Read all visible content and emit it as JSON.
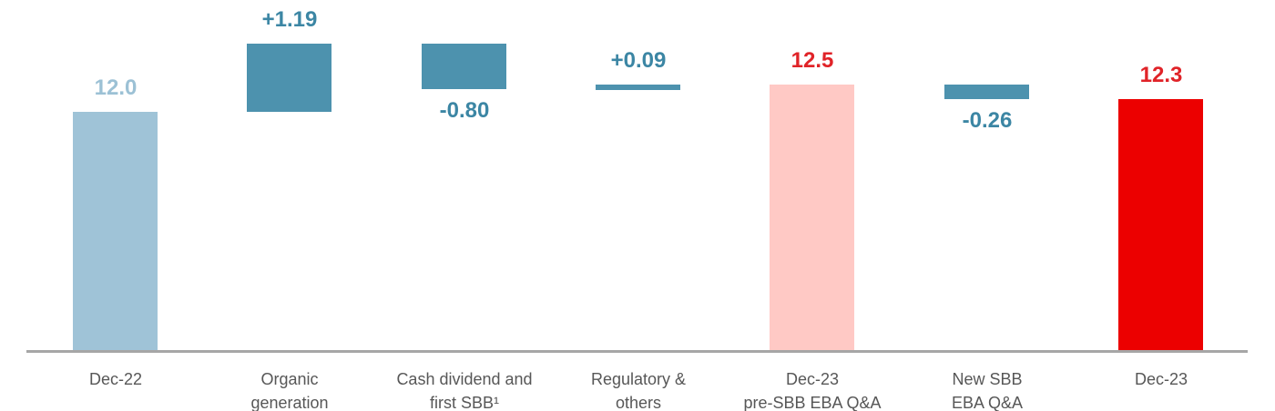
{
  "chart_data": {
    "type": "bar",
    "subtype": "waterfall",
    "title": "",
    "xlabel": "",
    "ylabel": "",
    "grid": false,
    "legend": null,
    "axis": {
      "baseline_color": "#a6a6a6"
    },
    "categories": [
      "Dec-22",
      "Organic\ngeneration",
      "Cash dividend and\nfirst SBB¹",
      "Regulatory &\nothers",
      "Dec-23\npre-SBB EBA Q&A",
      "New SBB\nEBA Q&A",
      "Dec-23"
    ],
    "bars": [
      {
        "category": "Dec-22",
        "label": "12.0",
        "value": 12.0,
        "kind": "total",
        "color": "#9fc3d7",
        "label_color": "#9cc1d5",
        "label_position": "above"
      },
      {
        "category": "Organic\ngeneration",
        "label": "+1.19",
        "value": 1.19,
        "kind": "delta",
        "color": "#4d92ae",
        "label_color": "#3c86a4",
        "label_position": "above"
      },
      {
        "category": "Cash dividend and\nfirst SBB¹",
        "label": "-0.80",
        "value": -0.8,
        "kind": "delta",
        "color": "#4d92ae",
        "label_color": "#3c86a4",
        "label_position": "below"
      },
      {
        "category": "Regulatory &\nothers",
        "label": "+0.09",
        "value": 0.09,
        "kind": "delta",
        "color": "#4d92ae",
        "label_color": "#3c86a4",
        "label_position": "above"
      },
      {
        "category": "Dec-23\npre-SBB EBA Q&A",
        "label": "12.5",
        "value": 12.5,
        "kind": "total",
        "color": "#ffc9c5",
        "label_color": "#e02328",
        "label_position": "above"
      },
      {
        "category": "New SBB\nEBA Q&A",
        "label": "-0.26",
        "value": -0.26,
        "kind": "delta",
        "color": "#4d92ae",
        "label_color": "#3c86a4",
        "label_position": "below"
      },
      {
        "category": "Dec-23",
        "label": "12.3",
        "value": 12.3,
        "kind": "total",
        "color": "#ec0000",
        "label_color": "#e02328",
        "label_position": "above"
      }
    ]
  }
}
